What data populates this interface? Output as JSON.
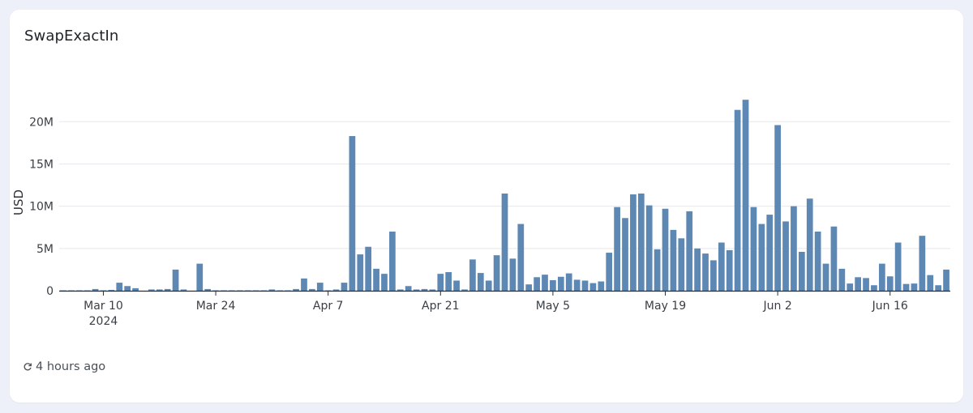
{
  "card": {
    "title": "SwapExactIn",
    "updated": "4 hours ago"
  },
  "colors": {
    "bar": "#5e88b4",
    "grid": "#e6e8ec",
    "axis": "#2b2f33"
  },
  "chart_data": {
    "type": "bar",
    "title": "SwapExactIn",
    "ylabel": "USD",
    "xlabel": "",
    "ylim": [
      0,
      23000000
    ],
    "y_ticks": [
      {
        "value": 0,
        "label": "0"
      },
      {
        "value": 5000000,
        "label": "5M"
      },
      {
        "value": 10000000,
        "label": "10M"
      },
      {
        "value": 15000000,
        "label": "15M"
      },
      {
        "value": 20000000,
        "label": "20M"
      }
    ],
    "x_ticks": [
      {
        "date": "2024-03-10",
        "label": "Mar 10",
        "sublabel": "2024"
      },
      {
        "date": "2024-03-24",
        "label": "Mar 24"
      },
      {
        "date": "2024-04-07",
        "label": "Apr 7"
      },
      {
        "date": "2024-04-21",
        "label": "Apr 21"
      },
      {
        "date": "2024-05-05",
        "label": "May 5"
      },
      {
        "date": "2024-05-19",
        "label": "May 19"
      },
      {
        "date": "2024-06-02",
        "label": "Jun 2"
      },
      {
        "date": "2024-06-16",
        "label": "Jun 16"
      }
    ],
    "grid": true,
    "start_date": "2024-03-05",
    "values": [
      50000,
      50000,
      50000,
      50000,
      200000,
      50000,
      100000,
      950000,
      550000,
      300000,
      0,
      150000,
      150000,
      200000,
      2500000,
      150000,
      0,
      3200000,
      200000,
      50000,
      50000,
      50000,
      50000,
      50000,
      50000,
      50000,
      150000,
      50000,
      50000,
      200000,
      1450000,
      200000,
      950000,
      50000,
      150000,
      950000,
      18300000,
      4300000,
      5200000,
      2600000,
      2000000,
      7000000,
      150000,
      550000,
      150000,
      200000,
      150000,
      2000000,
      2200000,
      1200000,
      150000,
      3700000,
      2100000,
      1200000,
      4200000,
      11500000,
      3800000,
      7900000,
      750000,
      1600000,
      1900000,
      1250000,
      1650000,
      2050000,
      1300000,
      1200000,
      900000,
      1100000,
      4500000,
      9900000,
      8600000,
      11400000,
      11500000,
      10100000,
      4900000,
      9700000,
      7200000,
      6200000,
      9400000,
      5000000,
      4400000,
      3600000,
      5700000,
      4800000,
      21400000,
      22600000,
      9900000,
      7900000,
      9000000,
      19600000,
      8200000,
      10000000,
      4600000,
      10900000,
      7000000,
      3200000,
      7600000,
      2600000,
      850000,
      1600000,
      1500000,
      650000,
      3200000,
      1700000,
      5700000,
      800000,
      850000,
      6500000,
      1850000,
      650000,
      2500000
    ]
  }
}
